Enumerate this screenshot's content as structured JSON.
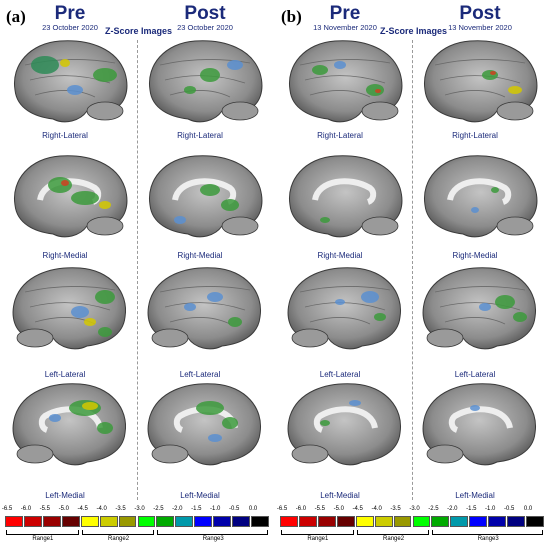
{
  "panels": [
    {
      "letter": "(a)",
      "pre_title": "Pre",
      "pre_date": "23 October 2020",
      "post_title": "Post",
      "post_date": "23 October 2020",
      "zscore_title": "Z-Score Images"
    },
    {
      "letter": "(b)",
      "pre_title": "Pre",
      "pre_date": "13 November 2020",
      "post_title": "Post",
      "post_date": "13 November 2020",
      "zscore_title": "Z-Score Images"
    }
  ],
  "views": [
    "Right-Lateral",
    "Right-Medial",
    "Left-Lateral",
    "Left-Medial"
  ],
  "colorbar": {
    "ticks": [
      "-6.5",
      "-6.0",
      "-5.5",
      "-5.0",
      "-4.5",
      "-4.0",
      "-3.5",
      "-3.0",
      "-2.5",
      "-2.0",
      "-1.5",
      "-1.0",
      "-0.5",
      "0.0"
    ],
    "colors": [
      "#ff0000",
      "#cc0000",
      "#990000",
      "#660000",
      "#ffff00",
      "#cccc00",
      "#999900",
      "#00ff00",
      "#00aa00",
      "#0099aa",
      "#0000ff",
      "#0000aa",
      "#000080",
      "#000000"
    ],
    "ranges": [
      "Range1",
      "Range2",
      "Range3"
    ]
  },
  "colors": {
    "title": "#1b2a7a",
    "brain": "#8c8c8c"
  }
}
